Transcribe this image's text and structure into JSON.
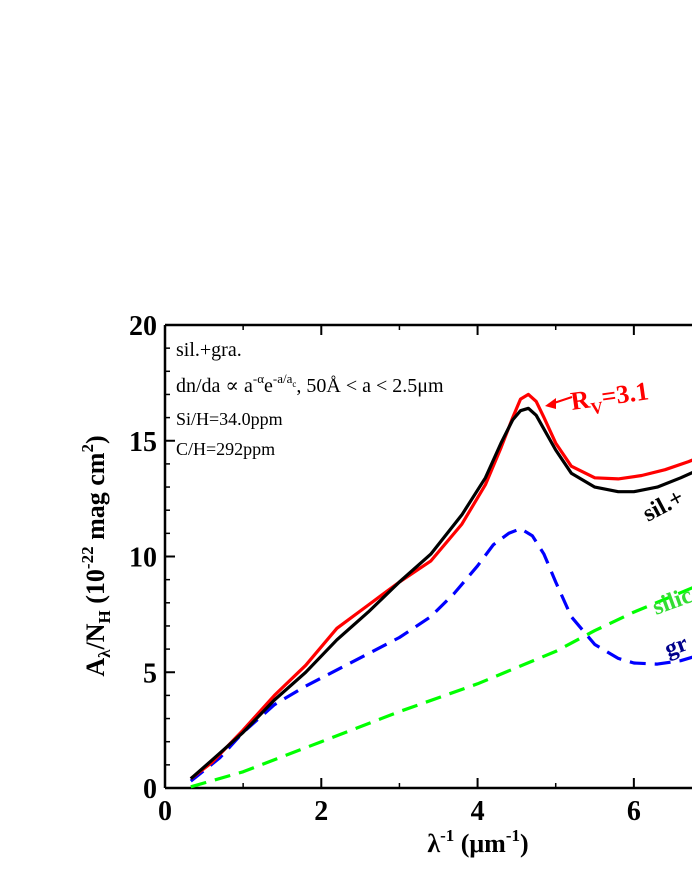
{
  "chart_data": {
    "type": "line",
    "xlabel_base": "λ",
    "xlabel_sup": "-1",
    "xlabel_units_open": " (μm",
    "xlabel_units_sup": "-1",
    "xlabel_units_close": ")",
    "ylabel_base": "A",
    "ylabel_sub1": "λ",
    "ylabel_mid": "/N",
    "ylabel_sub2": "H",
    "ylabel_open": " (10",
    "ylabel_exp": "-22",
    "ylabel_units": " mag cm",
    "ylabel_units_sup": "2",
    "ylabel_close": ")",
    "xlim": [
      0,
      7.0
    ],
    "ylim": [
      0,
      20
    ],
    "xticks": [
      0,
      2,
      4,
      6
    ],
    "xtick_labels": [
      "0",
      "2",
      "4",
      "6"
    ],
    "yticks": [
      0,
      5,
      10,
      15,
      20
    ],
    "ytick_labels": [
      "0",
      "5",
      "10",
      "15",
      "20"
    ],
    "annotations": {
      "model": "sil.+gra.",
      "size_dist": "dn/da ∝ a",
      "size_dist_exp1": "-α",
      "size_dist_e": "e",
      "size_dist_exp2": "-a/a",
      "size_dist_exp2_sub": "c",
      "size_dist_range": ", 50Å < a < 2.5μm",
      "si_abund": "Si/H=34.0ppm",
      "c_abund": "C/H=292ppm",
      "rv_label_R": "R",
      "rv_label_sub": "V",
      "rv_label_val": "=3.1",
      "sil_gra_label": "sil.+",
      "silicate_label": "silic",
      "graphite_label": "gr"
    },
    "colors": {
      "rv": "#ff0000",
      "sil_gra": "#000000",
      "graphite": "#0000ff",
      "silicate": "#00ff00",
      "graphite_label": "#00008b",
      "silicate_label": "#33dd33"
    },
    "series": [
      {
        "name": "R_V=3.1",
        "style": "solid",
        "color": "#ff0000",
        "x": [
          0.33,
          0.6,
          1.0,
          1.4,
          1.8,
          2.2,
          2.6,
          3.0,
          3.4,
          3.8,
          4.1,
          4.3,
          4.45,
          4.55,
          4.65,
          4.75,
          4.85,
          5.0,
          5.2,
          5.5,
          5.8,
          6.1,
          6.4,
          6.7,
          7.0
        ],
        "y": [
          0.4,
          1.1,
          2.5,
          4.0,
          5.3,
          6.9,
          7.9,
          8.9,
          9.8,
          11.4,
          13.1,
          14.7,
          16.0,
          16.8,
          17.0,
          16.7,
          16.0,
          14.9,
          13.9,
          13.4,
          13.35,
          13.5,
          13.75,
          14.1,
          14.5
        ]
      },
      {
        "name": "sil.+gra.",
        "style": "solid",
        "color": "#000000",
        "x": [
          0.33,
          0.6,
          1.0,
          1.4,
          1.8,
          2.2,
          2.6,
          3.0,
          3.4,
          3.8,
          4.1,
          4.3,
          4.45,
          4.55,
          4.65,
          4.75,
          4.85,
          5.0,
          5.2,
          5.5,
          5.8,
          6.0,
          6.3,
          6.6,
          7.0
        ],
        "y": [
          0.4,
          1.2,
          2.4,
          3.8,
          5.0,
          6.4,
          7.6,
          8.9,
          10.1,
          11.8,
          13.4,
          14.9,
          15.9,
          16.3,
          16.4,
          16.1,
          15.5,
          14.6,
          13.6,
          13.0,
          12.8,
          12.8,
          13.0,
          13.4,
          14.0
        ]
      },
      {
        "name": "graphite",
        "style": "dashed",
        "color": "#0000ff",
        "x": [
          0.33,
          0.7,
          1.0,
          1.4,
          1.8,
          2.2,
          2.6,
          3.0,
          3.4,
          3.7,
          4.0,
          4.2,
          4.4,
          4.55,
          4.7,
          4.85,
          5.0,
          5.2,
          5.5,
          5.8,
          6.0,
          6.3,
          6.6,
          7.0
        ],
        "y": [
          0.3,
          1.3,
          2.4,
          3.6,
          4.4,
          5.1,
          5.8,
          6.5,
          7.4,
          8.4,
          9.6,
          10.5,
          11.0,
          11.2,
          10.9,
          10.1,
          8.9,
          7.4,
          6.2,
          5.6,
          5.4,
          5.35,
          5.5,
          5.9
        ]
      },
      {
        "name": "silicate",
        "style": "dashed",
        "color": "#00ff00",
        "x": [
          0.33,
          1.0,
          2.0,
          3.0,
          4.0,
          4.5,
          5.0,
          5.5,
          6.0,
          6.5,
          7.0
        ],
        "y": [
          0.05,
          0.7,
          2.0,
          3.3,
          4.5,
          5.2,
          5.9,
          6.8,
          7.6,
          8.3,
          9.0
        ]
      }
    ]
  }
}
